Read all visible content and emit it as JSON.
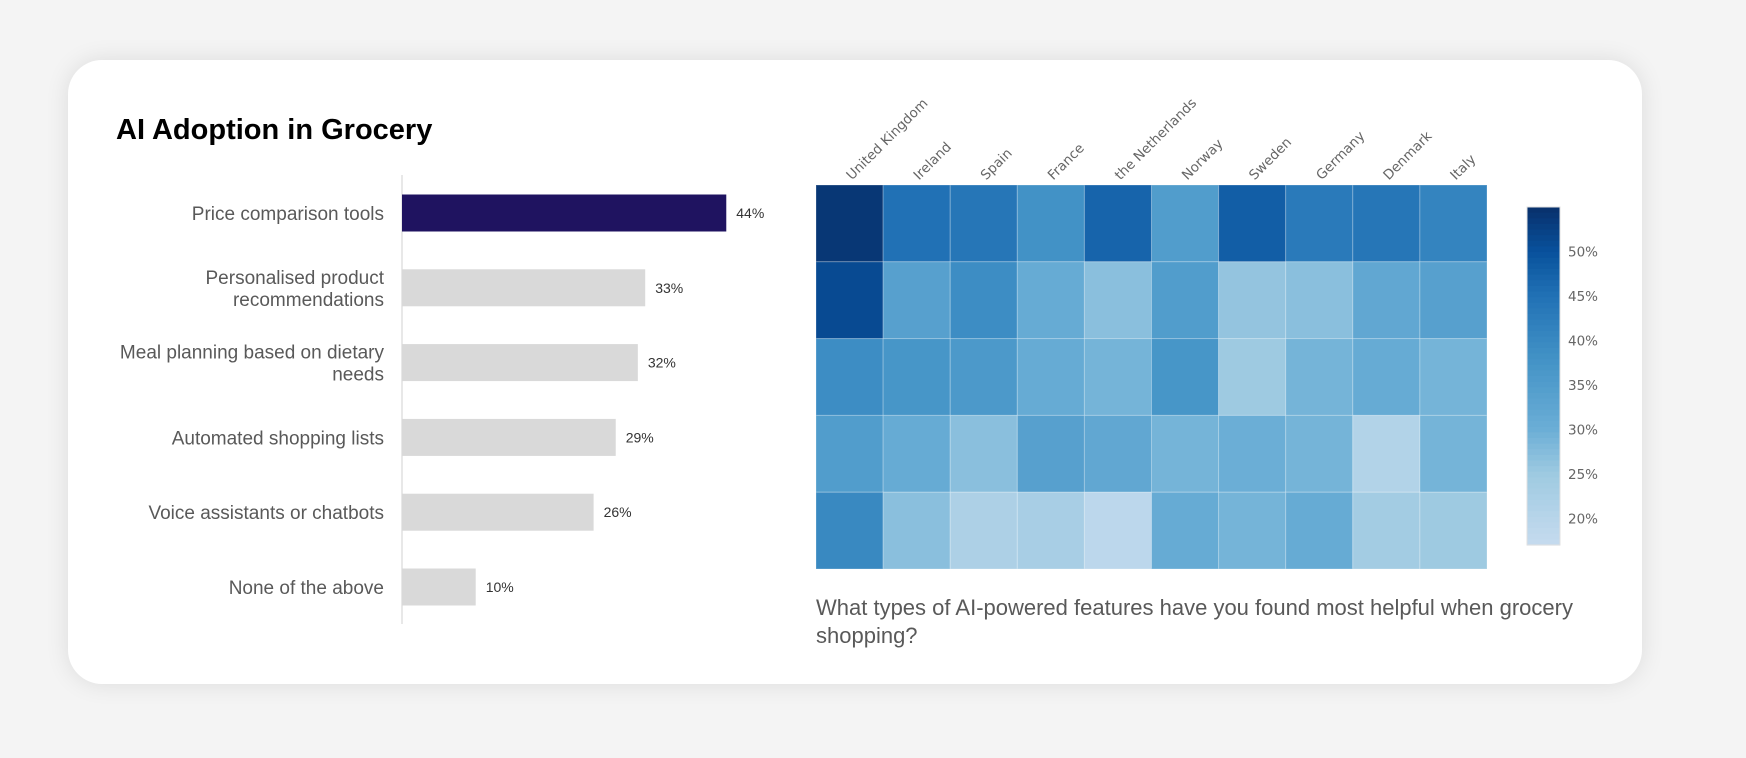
{
  "title": "AI Adoption in Grocery",
  "question": "What types of AI-powered features have you found most helpful when grocery shopping?",
  "chart_data": [
    {
      "type": "bar",
      "orientation": "horizontal",
      "categories": [
        "Price comparison tools",
        "Personalised product recommendations",
        "Meal planning based on dietary needs",
        "Automated shopping lists",
        "Voice assistants or chatbots",
        "None of the above"
      ],
      "category_lines": [
        [
          "Price comparison tools"
        ],
        [
          "Personalised product",
          "recommendations"
        ],
        [
          "Meal planning based on dietary",
          "needs"
        ],
        [
          "Automated shopping lists"
        ],
        [
          "Voice assistants or chatbots"
        ],
        [
          "None of the above"
        ]
      ],
      "values": [
        44,
        33,
        32,
        29,
        26,
        10
      ],
      "data_labels": [
        "44%",
        "33%",
        "32%",
        "29%",
        "26%",
        "10%"
      ],
      "highlight_color": "#1f1360",
      "bar_color": "#d9d9d9"
    },
    {
      "type": "heatmap",
      "x_labels": [
        "United Kingdom",
        "Ireland",
        "Spain",
        "France",
        "the Netherlands",
        "Norway",
        "Sweden",
        "Germany",
        "Denmark",
        "Italy"
      ],
      "values": [
        [
          54,
          45,
          44,
          38,
          47,
          35,
          48,
          43,
          44,
          41
        ],
        [
          51,
          34,
          39,
          31,
          27,
          35,
          26,
          27,
          32,
          34
        ],
        [
          39,
          37,
          36,
          31,
          29,
          37,
          25,
          29,
          31,
          29
        ],
        [
          35,
          31,
          27,
          34,
          32,
          29,
          30,
          29,
          21,
          29
        ],
        [
          40,
          27,
          22,
          23,
          19,
          31,
          29,
          31,
          24,
          25
        ]
      ],
      "colorscale": "Blues",
      "color_range": [
        17,
        55
      ],
      "colorbar_ticks": [
        20,
        25,
        30,
        35,
        40,
        45,
        50
      ],
      "colorbar_tick_labels": [
        "20%",
        "25%",
        "30%",
        "35%",
        "40%",
        "45%",
        "50%"
      ]
    }
  ]
}
